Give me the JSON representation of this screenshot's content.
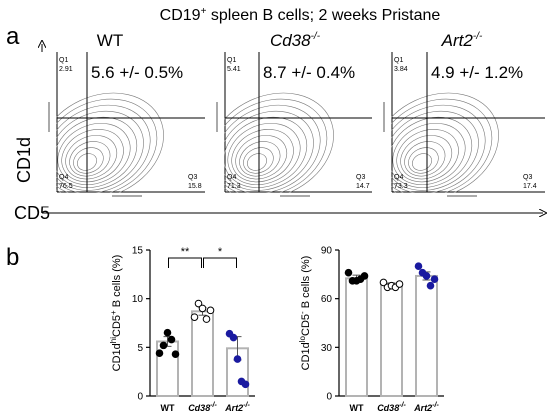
{
  "figure_title": {
    "prefix": "CD19",
    "sup": "+",
    "rest": " spleen B cells; 2 weeks Pristane"
  },
  "panel_a": {
    "letter": "a",
    "y_axis_label": "CD1d",
    "x_axis_label": "CD5",
    "plots": [
      {
        "header": "WT",
        "header_sup": "",
        "italic": false,
        "stat": "5.6 +/- 0.5%",
        "q1_label": "Q1",
        "q1_value": "2.91",
        "q4_label": "Q4",
        "q4_value": "76.5",
        "q3_label": "Q3",
        "q3_value": "15.8"
      },
      {
        "header": "Cd38",
        "header_sup": "-/-",
        "italic": true,
        "stat": "8.7 +/- 0.4%",
        "q1_label": "Q1",
        "q1_value": "5.41",
        "q4_label": "Q4",
        "q4_value": "71.3",
        "q3_label": "Q3",
        "q3_value": "14.7"
      },
      {
        "header": "Art2",
        "header_sup": "-/-",
        "italic": true,
        "stat": "4.9 +/- 1.2%",
        "q1_label": "Q1",
        "q1_value": "3.84",
        "q4_label": "Q4",
        "q4_value": "73.3",
        "q3_label": "Q3",
        "q3_value": "17.4"
      }
    ]
  },
  "panel_b": {
    "letter": "b",
    "colors": {
      "wt": "#000000",
      "cd38": "#ffffff",
      "art2": "#1a1aa0",
      "bar": "#b3b3b3"
    },
    "x_categories": [
      {
        "main": "WT",
        "sup": "",
        "italic": false
      },
      {
        "main": "Cd38",
        "sup": "-/-",
        "italic": true
      },
      {
        "main": "Art2",
        "sup": "-/-",
        "italic": true
      }
    ]
  },
  "chart_data": [
    {
      "type": "bar",
      "ylabel": "CD1d^hi CD5^+ B cells (%)",
      "ylim": [
        0,
        15
      ],
      "yticks": [
        "0",
        "5",
        "10",
        "15"
      ],
      "categories": [
        "WT",
        "Cd38-/-",
        "Art2-/-"
      ],
      "values": [
        5.6,
        8.7,
        4.9
      ],
      "errors": [
        0.5,
        0.4,
        1.2
      ],
      "points": [
        [
          4.4,
          5.2,
          6.5,
          5.8,
          4.3
        ],
        [
          8.1,
          9.5,
          9.0,
          7.9,
          8.8
        ],
        [
          6.4,
          6.0,
          3.8,
          1.5,
          1.2
        ]
      ],
      "significance": [
        {
          "from": 0,
          "to": 1,
          "label": "**"
        },
        {
          "from": 1,
          "to": 2,
          "label": "*"
        }
      ]
    },
    {
      "type": "bar",
      "ylabel": "CD1d^lo CD5^- B cells (%)",
      "ylim": [
        0,
        90
      ],
      "yticks": [
        "0",
        "30",
        "60",
        "90"
      ],
      "categories": [
        "WT",
        "Cd38-/-",
        "Art2-/-"
      ],
      "values": [
        72.5,
        68.5,
        74
      ],
      "errors": [
        2,
        1.2,
        2.5
      ],
      "points": [
        [
          76,
          71,
          71,
          72,
          74
        ],
        [
          70,
          67,
          68,
          67,
          69
        ],
        [
          80,
          76,
          74,
          68,
          72
        ]
      ],
      "significance": []
    }
  ]
}
